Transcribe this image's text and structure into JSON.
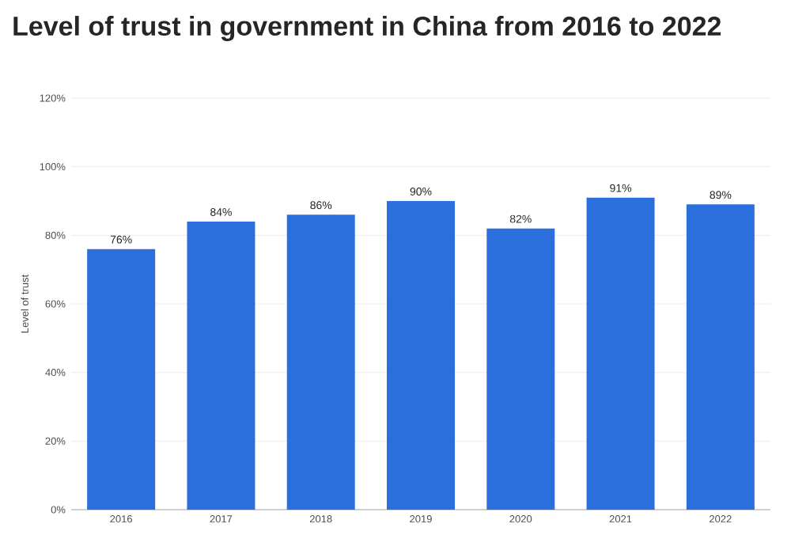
{
  "chart_data": {
    "type": "bar",
    "title": "Level of trust in government in China from 2016 to 2022",
    "ylabel": "Level of trust",
    "categories": [
      "2016",
      "2017",
      "2018",
      "2019",
      "2020",
      "2021",
      "2022"
    ],
    "values": [
      76,
      84,
      86,
      90,
      82,
      91,
      89
    ],
    "value_labels": [
      "76%",
      "84%",
      "86%",
      "90%",
      "82%",
      "91%",
      "89%"
    ],
    "color": "#2a6fdb",
    "ylim": [
      0,
      120
    ],
    "yticks": [
      {
        "value": 0,
        "label": "0%"
      },
      {
        "value": 20,
        "label": "20%"
      },
      {
        "value": 40,
        "label": "40%"
      },
      {
        "value": 60,
        "label": "60%"
      },
      {
        "value": 80,
        "label": "80%"
      },
      {
        "value": 100,
        "label": "100%"
      },
      {
        "value": 120,
        "label": "120%"
      }
    ],
    "grid": "y"
  }
}
